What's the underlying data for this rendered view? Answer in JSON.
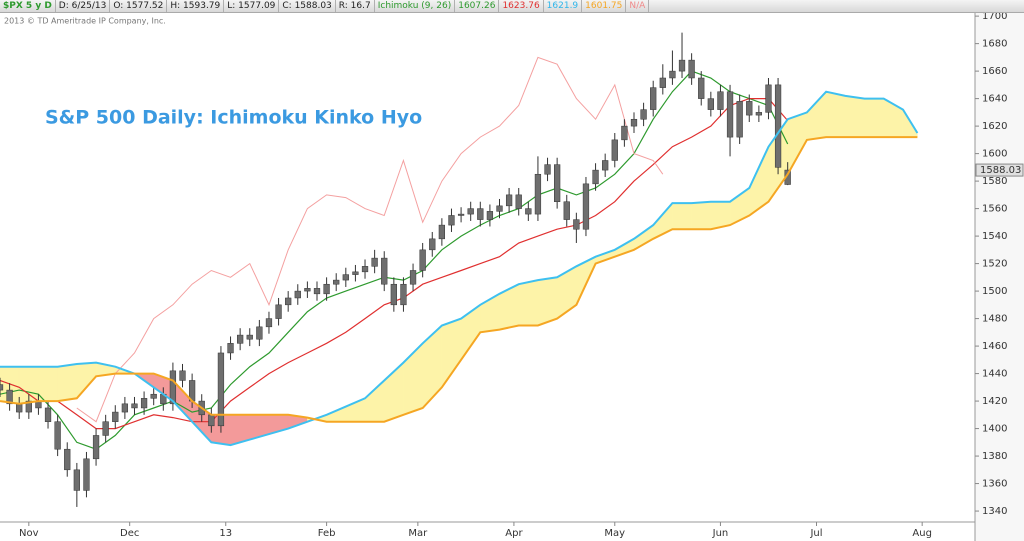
{
  "toolbar": {
    "symbol": "$PX 5 y D",
    "fields": [
      "D: 6/25/13",
      "O: 1577.52",
      "H: 1593.79",
      "L: 1577.09",
      "C: 1588.03",
      "R: 16.7"
    ],
    "study": "Ichimoku (9, 26)",
    "study_values": [
      {
        "text": "1607.26",
        "color": "#2e9a2e"
      },
      {
        "text": "1623.76",
        "color": "#e03030"
      },
      {
        "text": "1621.9",
        "color": "#2fb6ea"
      },
      {
        "text": "1601.75",
        "color": "#f5a623"
      },
      {
        "text": "N/A",
        "color": "#f08a8a"
      }
    ]
  },
  "chart_data": {
    "type": "ichimoku",
    "title": "S&P 500 Daily: Ichimoku Kinko Hyo",
    "copyright": "2013 © TD Ameritrade IP Company, Inc.",
    "last_price": 1588.03,
    "xlim": [
      0,
      203
    ],
    "xticks": [
      {
        "value": 6,
        "label": "Nov"
      },
      {
        "value": 27,
        "label": "Dec"
      },
      {
        "value": 47,
        "label": "13"
      },
      {
        "value": 68,
        "label": "Feb"
      },
      {
        "value": 87,
        "label": "Mar"
      },
      {
        "value": 107,
        "label": "Apr"
      },
      {
        "value": 128,
        "label": "May"
      },
      {
        "value": 150,
        "label": "Jun"
      },
      {
        "value": 170,
        "label": "Jul"
      },
      {
        "value": 192,
        "label": "Aug"
      }
    ],
    "ylim": [
      1333.5,
      1703
    ],
    "yticks": [
      1340,
      1360,
      1380,
      1400,
      1420,
      1440,
      1460,
      1480,
      1500,
      1520,
      1540,
      1560,
      1580,
      1600,
      1620,
      1640,
      1660,
      1680,
      1700
    ],
    "grid": false,
    "cloud": {
      "x": [
        0,
        4,
        8,
        12,
        16,
        20,
        24,
        28,
        32,
        36,
        40,
        44,
        48,
        52,
        56,
        60,
        64,
        68,
        72,
        76,
        80,
        84,
        88,
        92,
        96,
        100,
        104,
        108,
        112,
        116,
        120,
        124,
        128,
        132,
        136,
        140,
        144,
        148,
        152,
        156,
        160,
        164,
        168,
        172,
        176,
        180,
        184,
        188,
        191
      ],
      "a": {
        "color": "#3ec0f0",
        "values": [
          1445,
          1445,
          1445,
          1445,
          1447,
          1448,
          1445,
          1440,
          1430,
          1420,
          1405,
          1390,
          1388,
          1392,
          1396,
          1400,
          1405,
          1410,
          1416,
          1422,
          1435,
          1448,
          1462,
          1475,
          1480,
          1490,
          1498,
          1505,
          1508,
          1510,
          1518,
          1525,
          1530,
          1538,
          1548,
          1564,
          1564,
          1565,
          1565,
          1575,
          1605,
          1625,
          1630,
          1645,
          1642,
          1640,
          1640,
          1632,
          1615
        ]
      },
      "b": {
        "color": "#f5a623",
        "values": [
          1420,
          1418,
          1420,
          1420,
          1422,
          1438,
          1440,
          1440,
          1440,
          1435,
          1420,
          1410,
          1410,
          1410,
          1410,
          1410,
          1408,
          1405,
          1405,
          1405,
          1405,
          1410,
          1415,
          1430,
          1450,
          1470,
          1472,
          1475,
          1475,
          1480,
          1490,
          1520,
          1525,
          1530,
          1538,
          1545,
          1545,
          1545,
          1548,
          1555,
          1565,
          1585,
          1610,
          1612,
          1612,
          1612,
          1612,
          1612,
          1612
        ]
      },
      "fill_up": "#fdf3a8",
      "fill_down": "#f39a9a"
    },
    "series": [
      {
        "color": "#2e9a2e",
        "x": [
          0,
          4,
          8,
          12,
          16,
          20,
          24,
          28,
          32,
          36,
          40,
          44,
          48,
          52,
          56,
          60,
          64,
          68,
          72,
          76,
          80,
          84,
          88,
          92,
          96,
          100,
          104,
          108,
          112,
          116,
          120,
          124,
          128,
          132,
          136,
          140,
          144,
          148,
          152,
          156,
          160,
          164
        ],
        "values": [
          1425,
          1428,
          1425,
          1410,
          1390,
          1385,
          1395,
          1410,
          1415,
          1420,
          1412,
          1415,
          1432,
          1445,
          1455,
          1470,
          1485,
          1495,
          1500,
          1505,
          1510,
          1508,
          1515,
          1530,
          1540,
          1548,
          1555,
          1560,
          1570,
          1575,
          1570,
          1575,
          1585,
          1600,
          1625,
          1645,
          1660,
          1655,
          1645,
          1640,
          1635,
          1607
        ]
      },
      {
        "color": "#e03030",
        "x": [
          0,
          4,
          8,
          12,
          16,
          20,
          24,
          28,
          32,
          36,
          40,
          44,
          48,
          52,
          56,
          60,
          64,
          68,
          72,
          76,
          80,
          84,
          88,
          92,
          96,
          100,
          104,
          108,
          112,
          116,
          120,
          124,
          128,
          132,
          136,
          140,
          144,
          148,
          152,
          156,
          160,
          164
        ],
        "values": [
          1435,
          1430,
          1420,
          1420,
          1410,
          1400,
          1400,
          1405,
          1410,
          1408,
          1405,
          1405,
          1420,
          1430,
          1440,
          1448,
          1455,
          1462,
          1470,
          1480,
          1490,
          1495,
          1505,
          1510,
          1515,
          1520,
          1525,
          1535,
          1540,
          1545,
          1548,
          1555,
          1565,
          1580,
          1592,
          1605,
          1612,
          1620,
          1635,
          1640,
          1640,
          1624
        ]
      },
      {
        "color": "#f4a0a0",
        "x": [
          16,
          20,
          24,
          28,
          32,
          36,
          40,
          44,
          48,
          52,
          56,
          60,
          64,
          68,
          72,
          76,
          80,
          84,
          88,
          92,
          96,
          100,
          104,
          108,
          112,
          116,
          120,
          124,
          128,
          132,
          136,
          138
        ],
        "values": [
          1415,
          1405,
          1440,
          1455,
          1480,
          1490,
          1505,
          1515,
          1510,
          1520,
          1490,
          1530,
          1560,
          1570,
          1568,
          1560,
          1555,
          1595,
          1550,
          1580,
          1600,
          1612,
          1620,
          1635,
          1670,
          1665,
          1640,
          1625,
          1650,
          1600,
          1595,
          1585
        ]
      }
    ],
    "candles": {
      "color": "#6e6e6e",
      "wick": "#333333",
      "x": [
        0,
        2,
        4,
        6,
        8,
        10,
        12,
        14,
        16,
        18,
        20,
        22,
        24,
        26,
        28,
        30,
        32,
        34,
        36,
        38,
        40,
        42,
        44,
        46,
        48,
        50,
        52,
        54,
        56,
        58,
        60,
        62,
        64,
        66,
        68,
        70,
        72,
        74,
        76,
        78,
        80,
        82,
        84,
        86,
        88,
        90,
        92,
        94,
        96,
        98,
        100,
        102,
        104,
        106,
        108,
        110,
        112,
        114,
        116,
        118,
        120,
        122,
        124,
        126,
        128,
        130,
        132,
        134,
        136,
        138,
        140,
        142,
        144,
        146,
        148,
        150,
        152,
        154,
        156,
        158,
        160,
        162,
        164
      ],
      "open": [
        1432,
        1428,
        1418,
        1412,
        1420,
        1415,
        1405,
        1385,
        1370,
        1355,
        1378,
        1395,
        1405,
        1412,
        1418,
        1415,
        1422,
        1425,
        1418,
        1442,
        1435,
        1420,
        1410,
        1402,
        1455,
        1462,
        1468,
        1465,
        1474,
        1480,
        1490,
        1495,
        1500,
        1502,
        1498,
        1505,
        1508,
        1512,
        1514,
        1518,
        1524,
        1505,
        1490,
        1505,
        1515,
        1530,
        1538,
        1548,
        1555,
        1556,
        1560,
        1552,
        1558,
        1562,
        1570,
        1560,
        1556,
        1585,
        1592,
        1565,
        1552,
        1545,
        1578,
        1588,
        1595,
        1610,
        1620,
        1625,
        1632,
        1648,
        1655,
        1660,
        1668,
        1655,
        1640,
        1632,
        1645,
        1612,
        1638,
        1628,
        1630,
        1650,
        1577.52
      ],
      "high": [
        1437,
        1433,
        1423,
        1425,
        1425,
        1420,
        1410,
        1390,
        1375,
        1383,
        1400,
        1410,
        1417,
        1423,
        1423,
        1427,
        1430,
        1430,
        1448,
        1447,
        1440,
        1425,
        1415,
        1460,
        1467,
        1473,
        1473,
        1479,
        1485,
        1495,
        1500,
        1505,
        1507,
        1507,
        1510,
        1513,
        1517,
        1519,
        1523,
        1530,
        1529,
        1510,
        1510,
        1520,
        1535,
        1543,
        1553,
        1560,
        1561,
        1565,
        1565,
        1563,
        1567,
        1575,
        1575,
        1565,
        1598,
        1597,
        1597,
        1570,
        1557,
        1583,
        1593,
        1600,
        1615,
        1625,
        1630,
        1637,
        1653,
        1665,
        1675,
        1688,
        1673,
        1660,
        1645,
        1650,
        1650,
        1643,
        1643,
        1635,
        1655,
        1655,
        1593.79
      ],
      "low": [
        1423,
        1413,
        1407,
        1407,
        1410,
        1400,
        1380,
        1365,
        1343,
        1350,
        1373,
        1390,
        1400,
        1407,
        1410,
        1410,
        1417,
        1413,
        1413,
        1430,
        1415,
        1405,
        1397,
        1397,
        1450,
        1457,
        1460,
        1460,
        1469,
        1475,
        1485,
        1490,
        1495,
        1493,
        1493,
        1500,
        1503,
        1507,
        1509,
        1513,
        1500,
        1485,
        1485,
        1500,
        1510,
        1525,
        1533,
        1543,
        1550,
        1551,
        1547,
        1547,
        1553,
        1557,
        1555,
        1551,
        1551,
        1580,
        1560,
        1547,
        1535,
        1540,
        1573,
        1583,
        1590,
        1605,
        1615,
        1620,
        1627,
        1643,
        1650,
        1655,
        1650,
        1635,
        1627,
        1627,
        1598,
        1607,
        1623,
        1623,
        1625,
        1585,
        1577.09
      ],
      "close": [
        1428,
        1418,
        1412,
        1420,
        1415,
        1405,
        1385,
        1370,
        1355,
        1378,
        1395,
        1405,
        1412,
        1418,
        1415,
        1422,
        1425,
        1418,
        1442,
        1435,
        1420,
        1410,
        1402,
        1455,
        1462,
        1468,
        1465,
        1474,
        1480,
        1490,
        1495,
        1500,
        1502,
        1498,
        1505,
        1508,
        1512,
        1514,
        1518,
        1524,
        1505,
        1490,
        1505,
        1515,
        1530,
        1538,
        1548,
        1555,
        1556,
        1560,
        1552,
        1558,
        1562,
        1570,
        1560,
        1556,
        1585,
        1592,
        1565,
        1552,
        1545,
        1578,
        1588,
        1595,
        1610,
        1620,
        1625,
        1632,
        1648,
        1655,
        1660,
        1668,
        1655,
        1640,
        1632,
        1645,
        1612,
        1638,
        1628,
        1630,
        1650,
        1590,
        1588.03
      ]
    }
  }
}
